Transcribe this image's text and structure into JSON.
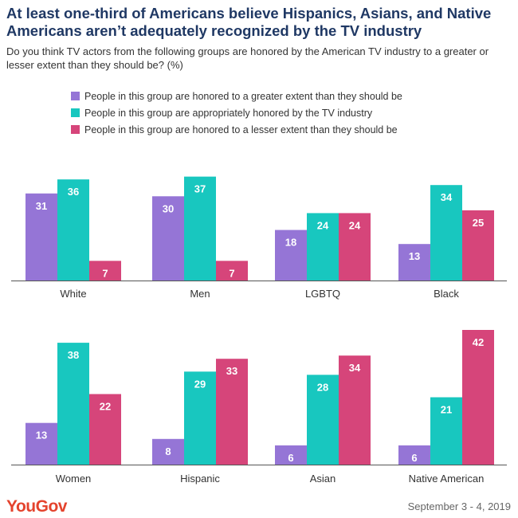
{
  "title": "At least one-third of Americans believe Hispanics, Asians, and Native Americans aren’t adequately recognized by the TV industry",
  "subtitle": "Do you think TV actors from the following groups are honored by the American TV industry to a greater or lesser extent than they should be? (%)",
  "footer": {
    "brand": "YouGov",
    "date": "September 3 - 4, 2019"
  },
  "colors": {
    "greater": "#9575d6",
    "appropriate": "#18c7bf",
    "lesser": "#d6457a",
    "label": "#ffffff",
    "axis": "#555555"
  },
  "chart_data": {
    "type": "bar",
    "title": "",
    "xlabel": "",
    "ylabel": "",
    "ylim": [
      0,
      42
    ],
    "grid": false,
    "legend_position": "top",
    "categories": [
      "White",
      "Men",
      "LGBTQ",
      "Black",
      "Women",
      "Hispanic",
      "Asian",
      "Native American"
    ],
    "series": [
      {
        "name": "People in this group are honored to a greater extent than they should be",
        "color": "#9575d6",
        "values": [
          31,
          30,
          18,
          13,
          13,
          8,
          6,
          6
        ]
      },
      {
        "name": "People in this group are appropriately honored by the TV industry",
        "color": "#18c7bf",
        "values": [
          36,
          37,
          24,
          34,
          38,
          29,
          28,
          21
        ]
      },
      {
        "name": "People in this group are honored to a lesser extent than they should be",
        "color": "#d6457a",
        "values": [
          7,
          7,
          24,
          25,
          22,
          33,
          34,
          42
        ]
      }
    ]
  }
}
